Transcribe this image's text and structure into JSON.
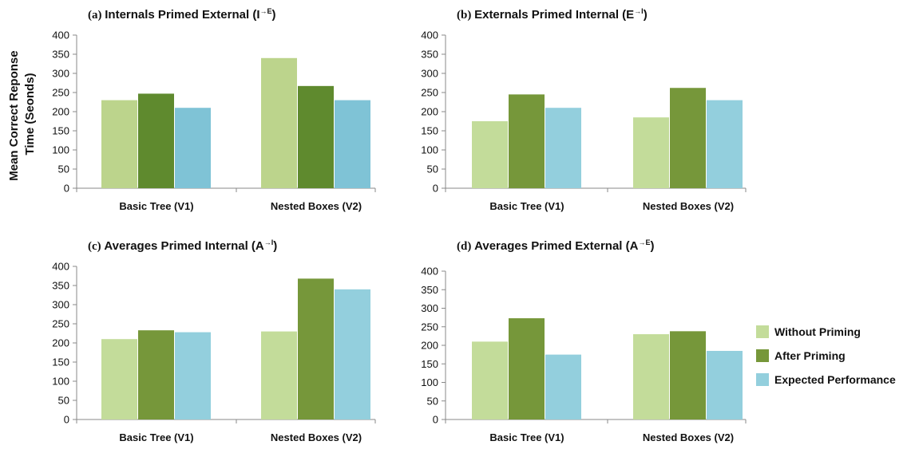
{
  "ylabel": [
    "Mean Correct Reponse",
    "Time (Seonds)"
  ],
  "legend": [
    {
      "label": "Without Priming",
      "color": "#c3dc9a"
    },
    {
      "label": "After Priming",
      "color": "#76973a"
    },
    {
      "label": "Expected Performance",
      "color": "#93cfdd"
    }
  ],
  "chart_data": [
    {
      "type": "bar",
      "title_prefix": "(a)",
      "title_main": "Internals Primed External",
      "title_base": "I",
      "title_sup": "→E",
      "categories": [
        "Basic Tree (V1)",
        "Nested Boxes (V2)"
      ],
      "series": [
        {
          "name": "Without Priming",
          "values": [
            230,
            340
          ]
        },
        {
          "name": "After Priming",
          "values": [
            247,
            267
          ]
        },
        {
          "name": "Expected Performance",
          "values": [
            210,
            230
          ]
        }
      ],
      "ylim": [
        0,
        400
      ],
      "yticks": [
        "0",
        "50",
        "100",
        "150",
        "200",
        "250",
        "300",
        "350",
        "400"
      ]
    },
    {
      "type": "bar",
      "title_prefix": "(b)",
      "title_main": "Externals Primed Internal",
      "title_base": "E",
      "title_sup": "→I",
      "categories": [
        "Basic Tree (V1)",
        "Nested Boxes (V2)"
      ],
      "series": [
        {
          "name": "Without Priming",
          "values": [
            175,
            185
          ]
        },
        {
          "name": "After Priming",
          "values": [
            245,
            262
          ]
        },
        {
          "name": "Expected Performance",
          "values": [
            210,
            230
          ]
        }
      ],
      "ylim": [
        0,
        400
      ],
      "yticks": [
        "0",
        "50",
        "100",
        "150",
        "200",
        "250",
        "300",
        "350",
        "400"
      ]
    },
    {
      "type": "bar",
      "title_prefix": "(c)",
      "title_main": "Averages Primed Internal",
      "title_base": "A",
      "title_sup": "→I",
      "categories": [
        "Basic Tree (V1)",
        "Nested Boxes (V2)"
      ],
      "series": [
        {
          "name": "Without Priming",
          "values": [
            210,
            230
          ]
        },
        {
          "name": "After Priming",
          "values": [
            233,
            368
          ]
        },
        {
          "name": "Expected Performance",
          "values": [
            228,
            340
          ]
        }
      ],
      "ylim": [
        0,
        400
      ],
      "yticks": [
        "0",
        "50",
        "100",
        "150",
        "200",
        "250",
        "300",
        "350",
        "400"
      ]
    },
    {
      "type": "bar",
      "title_prefix": "(d)",
      "title_main": "Averages Primed External",
      "title_base": "A",
      "title_sup": "→E",
      "categories": [
        "Basic Tree (V1)",
        "Nested Boxes (V2)"
      ],
      "series": [
        {
          "name": "Without Priming",
          "values": [
            210,
            230
          ]
        },
        {
          "name": "After Priming",
          "values": [
            273,
            238
          ]
        },
        {
          "name": "Expected Performance",
          "values": [
            175,
            185
          ]
        }
      ],
      "ylim": [
        0,
        400
      ],
      "yticks": [
        "0",
        "50",
        "100",
        "150",
        "200",
        "250",
        "300",
        "350",
        "400"
      ]
    }
  ]
}
